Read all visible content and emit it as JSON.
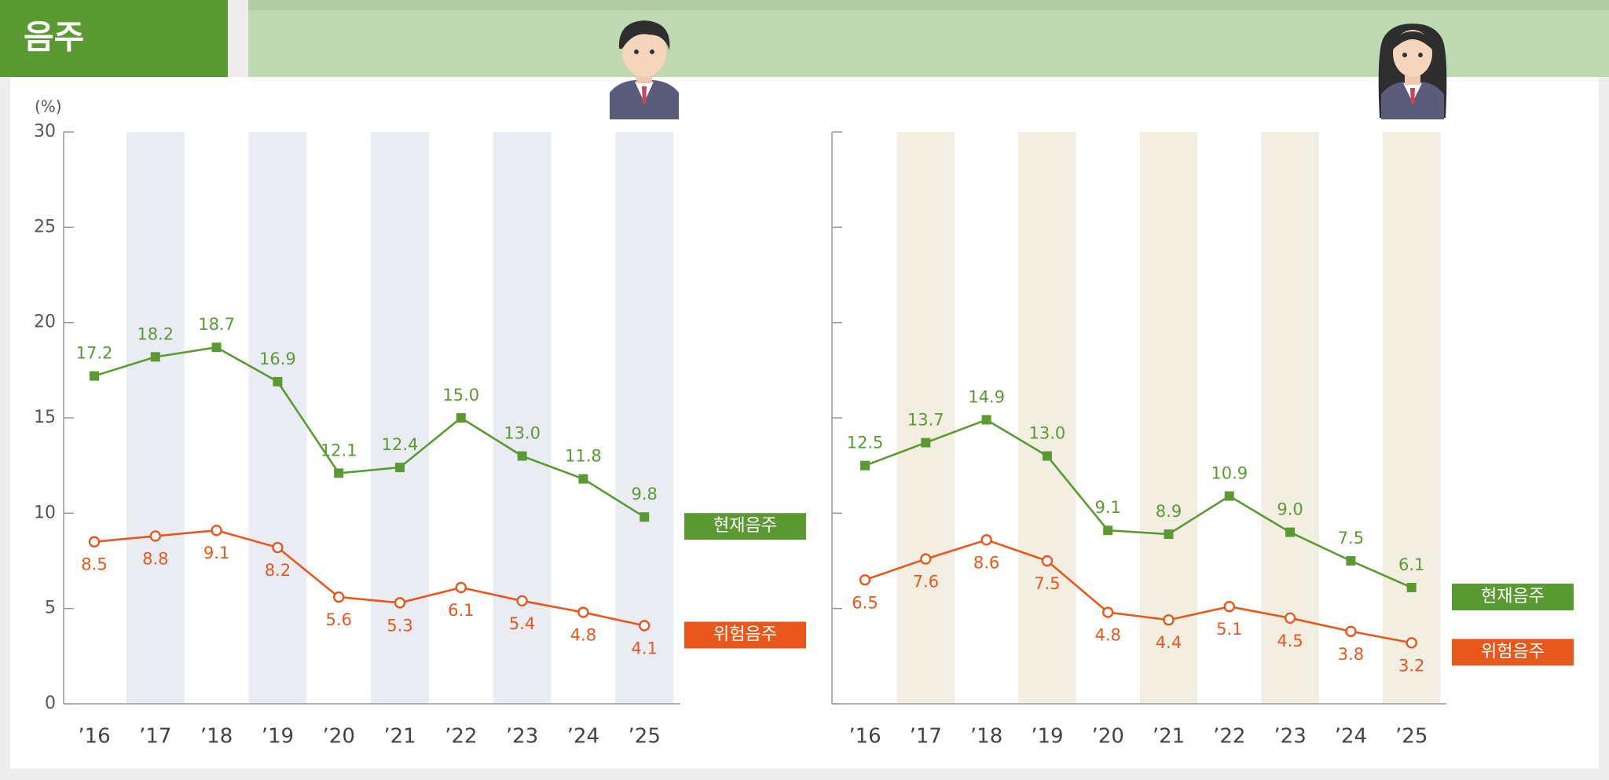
{
  "header": {
    "title": "음주"
  },
  "chart_data": [
    {
      "type": "line",
      "y_label": "(%)",
      "categories": [
        "’16",
        "’17",
        "’18",
        "’19",
        "’20",
        "’21",
        "’22",
        "’23",
        "’24",
        "’25"
      ],
      "series": [
        {
          "name": "현재음주",
          "color": "#5b9a33",
          "values": [
            17.2,
            18.2,
            18.7,
            16.9,
            12.1,
            12.4,
            15.0,
            13.0,
            11.8,
            9.8
          ],
          "value_labels": [
            "17.2",
            "18.2",
            "18.7",
            "16.9",
            "12.1",
            "12.4",
            "15.0",
            "13.0",
            "11.8",
            "9.8"
          ]
        },
        {
          "name": "위험음주",
          "color": "#e8581c",
          "values": [
            8.5,
            8.8,
            9.1,
            8.2,
            5.6,
            5.3,
            6.1,
            5.4,
            4.8,
            4.1
          ],
          "value_labels": [
            "8.5",
            "8.8",
            "9.1",
            "8.2",
            "5.6",
            "5.3",
            "6.1",
            "5.4",
            "4.8",
            "4.1"
          ]
        }
      ],
      "ylim": [
        0,
        30
      ],
      "yticks": [
        0,
        5,
        10,
        15,
        20,
        25,
        30
      ],
      "band_color": "#e9edf3"
    },
    {
      "type": "line",
      "categories": [
        "’16",
        "’17",
        "’18",
        "’19",
        "’20",
        "’21",
        "’22",
        "’23",
        "’24",
        "’25"
      ],
      "series": [
        {
          "name": "현재음주",
          "color": "#5b9a33",
          "values": [
            12.5,
            13.7,
            14.9,
            13.0,
            9.1,
            8.9,
            10.9,
            9.0,
            7.5,
            6.1
          ],
          "value_labels": [
            "12.5",
            "13.7",
            "14.9",
            "13.0",
            "9.1",
            "8.9",
            "10.9",
            "9.0",
            "7.5",
            "6.1"
          ]
        },
        {
          "name": "위험음주",
          "color": "#e8581c",
          "values": [
            6.5,
            7.6,
            8.6,
            7.5,
            4.8,
            4.4,
            5.1,
            4.5,
            3.8,
            3.2
          ],
          "value_labels": [
            "6.5",
            "7.6",
            "8.6",
            "7.5",
            "4.8",
            "4.4",
            "5.1",
            "4.5",
            "3.8",
            "3.2"
          ]
        }
      ],
      "ylim": [
        0,
        30
      ],
      "yticks": [
        0,
        5,
        10,
        15,
        20,
        25,
        30
      ],
      "band_color": "#f3eee2"
    }
  ]
}
